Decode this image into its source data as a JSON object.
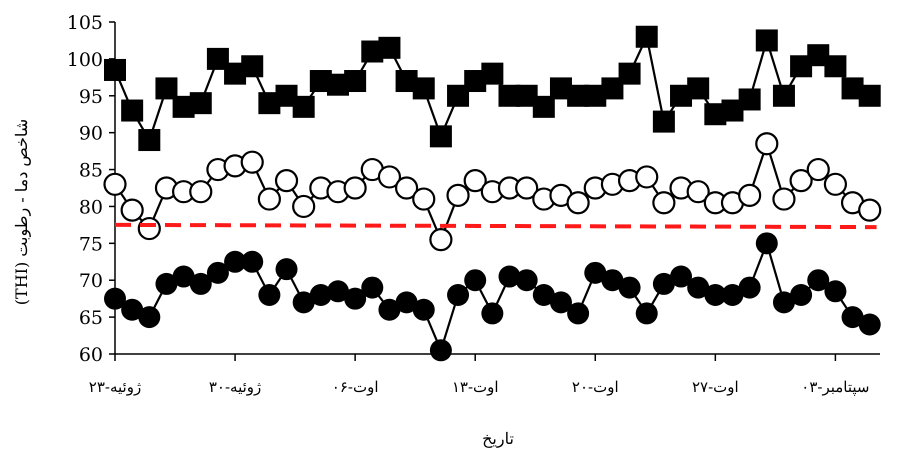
{
  "chart_data": {
    "type": "line",
    "title": "",
    "xlabel": "تاریخ",
    "ylabel": "(THI) شاخص دما - رطوبت",
    "ylim": [
      60,
      105
    ],
    "yticks": [
      "60",
      "65",
      "70",
      "75",
      "80",
      "85",
      "90",
      "95",
      "100",
      "105"
    ],
    "x_tick_labels": [
      "۲۳-ژوئیه",
      "۳۰-ژوئیه",
      "۰۶-اوت",
      "۱۳-اوت",
      "۲۰-اوت",
      "۲۷-اوت",
      "۰۳-سپتامبر"
    ],
    "x_tick_positions": [
      0,
      7,
      14,
      21,
      28,
      35,
      42
    ],
    "x_range": [
      0,
      44.6
    ],
    "legend": "none",
    "grid": false,
    "series": [
      {
        "marker": "square-filled",
        "values": [
          98.5,
          93,
          89,
          96,
          93.5,
          94,
          100,
          98,
          99,
          94,
          95,
          93.5,
          97,
          96.5,
          97,
          101,
          101.5,
          97,
          96,
          89.5,
          95,
          97,
          98,
          95,
          95,
          93.5,
          96,
          95,
          95,
          96,
          98,
          103,
          91.5,
          95,
          96,
          92.5,
          93,
          94.5,
          102.5,
          95,
          99,
          100.5,
          99,
          96,
          95
        ]
      },
      {
        "marker": "circle-open",
        "values": [
          83,
          79.5,
          77,
          82.5,
          82,
          82,
          85,
          85.5,
          86,
          81,
          83.5,
          80,
          82.5,
          82,
          82.5,
          85,
          84,
          82.5,
          81,
          75.5,
          81.5,
          83.5,
          82,
          82.5,
          82.5,
          81,
          81.5,
          80.5,
          82.5,
          83,
          83.5,
          84,
          80.5,
          82.5,
          82,
          80.5,
          80.5,
          81.5,
          88.5,
          81,
          83.5,
          85,
          83,
          80.5,
          79.5
        ]
      },
      {
        "marker": "circle-filled",
        "values": [
          67.5,
          66,
          65,
          69.5,
          70.5,
          69.5,
          71,
          72.5,
          72.5,
          68,
          71.5,
          67,
          68,
          68.5,
          67.5,
          69,
          66,
          67,
          66,
          60.5,
          68,
          70,
          65.5,
          70.5,
          70,
          68,
          67,
          65.5,
          71,
          70,
          69,
          65.5,
          69.5,
          70.5,
          69,
          68,
          68,
          69,
          75,
          67,
          68,
          70,
          68.5,
          65,
          64
        ]
      },
      {
        "style": "dashed-red",
        "values": [
          77.5,
          77.2
        ]
      }
    ]
  }
}
